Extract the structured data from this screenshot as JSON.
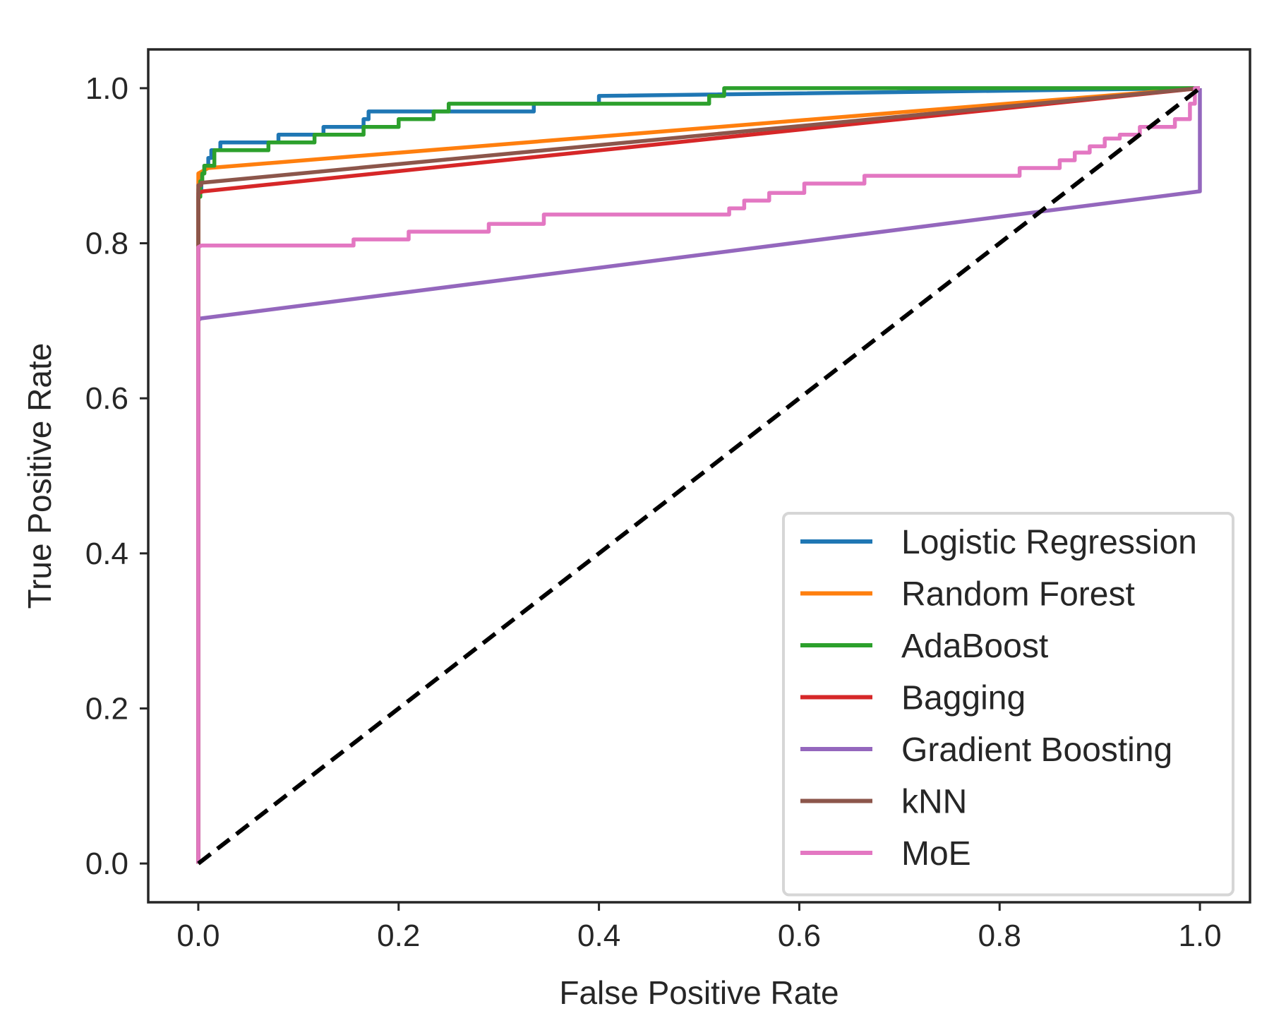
{
  "chart_data": {
    "type": "line",
    "title": "",
    "xlabel": "False Positive Rate",
    "ylabel": "True Positive Rate",
    "xlim": [
      -0.05,
      1.05
    ],
    "ylim": [
      -0.05,
      1.05
    ],
    "xticks": [
      0.0,
      0.2,
      0.4,
      0.6,
      0.8,
      1.0
    ],
    "yticks": [
      0.0,
      0.2,
      0.4,
      0.6,
      0.8,
      1.0
    ],
    "xtick_labels": [
      "0.0",
      "0.2",
      "0.4",
      "0.6",
      "0.8",
      "1.0"
    ],
    "ytick_labels": [
      "0.0",
      "0.2",
      "0.4",
      "0.6",
      "0.8",
      "1.0"
    ],
    "grid": false,
    "legend_position": "bottom-right",
    "series": [
      {
        "name": "Logistic Regression",
        "color": "#1f77b4",
        "x": [
          0,
          0,
          0.003,
          0.003,
          0.006,
          0.006,
          0.01,
          0.01,
          0.013,
          0.013,
          0.022,
          0.022,
          0.08,
          0.08,
          0.125,
          0.125,
          0.165,
          0.165,
          0.17,
          0.17,
          0.335,
          0.335,
          0.4,
          0.4,
          1.0
        ],
        "y": [
          0,
          0.87,
          0.87,
          0.89,
          0.89,
          0.9,
          0.9,
          0.91,
          0.91,
          0.92,
          0.92,
          0.93,
          0.93,
          0.94,
          0.94,
          0.95,
          0.95,
          0.96,
          0.96,
          0.97,
          0.97,
          0.98,
          0.98,
          0.99,
          1.0
        ]
      },
      {
        "name": "Random Forest",
        "color": "#ff7f0e",
        "x": [
          0,
          0,
          0.01,
          1.0
        ],
        "y": [
          0,
          0.89,
          0.897,
          1.0
        ]
      },
      {
        "name": "AdaBoost",
        "color": "#2ca02c",
        "x": [
          0,
          0,
          0.002,
          0.002,
          0.004,
          0.004,
          0.006,
          0.006,
          0.016,
          0.016,
          0.07,
          0.07,
          0.116,
          0.116,
          0.165,
          0.165,
          0.2,
          0.2,
          0.235,
          0.235,
          0.25,
          0.25,
          0.51,
          0.51,
          0.525,
          0.525,
          1.0
        ],
        "y": [
          0,
          0.86,
          0.86,
          0.88,
          0.88,
          0.89,
          0.89,
          0.9,
          0.9,
          0.92,
          0.92,
          0.93,
          0.93,
          0.94,
          0.94,
          0.95,
          0.95,
          0.96,
          0.96,
          0.97,
          0.97,
          0.98,
          0.98,
          0.99,
          0.99,
          1.0,
          1.0
        ]
      },
      {
        "name": "Bagging",
        "color": "#d62728",
        "x": [
          0,
          0,
          0.005,
          1.0
        ],
        "y": [
          0,
          0.865,
          0.867,
          1.0
        ]
      },
      {
        "name": "Gradient Boosting",
        "color": "#9467bd",
        "x": [
          0,
          0,
          0.002,
          1.0,
          1.0
        ],
        "y": [
          0,
          0.7,
          0.703,
          0.867,
          1.0
        ]
      },
      {
        "name": "kNN",
        "color": "#8c564b",
        "x": [
          0,
          0,
          0.003,
          0.003,
          1.0
        ],
        "y": [
          0,
          0.875,
          0.875,
          0.878,
          1.0
        ]
      },
      {
        "name": "MoE",
        "color": "#e377c2",
        "x": [
          0,
          0,
          0.003,
          0.155,
          0.155,
          0.21,
          0.21,
          0.29,
          0.29,
          0.345,
          0.345,
          0.53,
          0.53,
          0.545,
          0.545,
          0.57,
          0.57,
          0.605,
          0.605,
          0.665,
          0.665,
          0.82,
          0.82,
          0.86,
          0.86,
          0.875,
          0.875,
          0.89,
          0.89,
          0.905,
          0.905,
          0.92,
          0.92,
          0.94,
          0.94,
          0.975,
          0.975,
          0.99,
          0.99,
          0.995,
          0.995,
          1.0
        ],
        "y": [
          0,
          0.795,
          0.797,
          0.797,
          0.805,
          0.805,
          0.815,
          0.815,
          0.825,
          0.825,
          0.837,
          0.837,
          0.845,
          0.845,
          0.855,
          0.855,
          0.865,
          0.865,
          0.877,
          0.877,
          0.887,
          0.887,
          0.897,
          0.897,
          0.907,
          0.907,
          0.917,
          0.917,
          0.925,
          0.925,
          0.935,
          0.935,
          0.94,
          0.94,
          0.95,
          0.95,
          0.96,
          0.96,
          0.98,
          0.98,
          1.0,
          1.0
        ]
      },
      {
        "name": "Random baseline",
        "color": "#000000",
        "dashed": true,
        "in_legend": false,
        "x": [
          0,
          1.0
        ],
        "y": [
          0,
          1.0
        ]
      }
    ]
  }
}
